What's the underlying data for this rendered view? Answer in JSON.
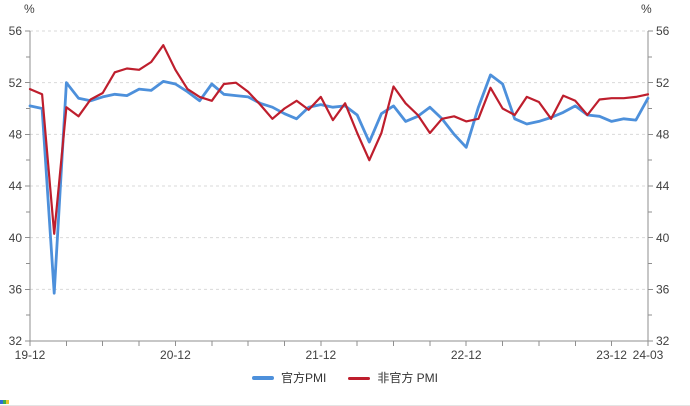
{
  "chart_data": {
    "type": "line",
    "title": "",
    "xlabel": "",
    "ylabel": "%",
    "ylim": [
      32,
      56
    ],
    "y_major_step": 4,
    "y_minor_step": 2,
    "dual_y_axis": true,
    "grid": "horizontal-dashed",
    "legend_position": "bottom-center",
    "x_minor_tick_every_months": 3,
    "x": [
      "19-12",
      "20-01",
      "20-02",
      "20-03",
      "20-04",
      "20-05",
      "20-06",
      "20-07",
      "20-08",
      "20-09",
      "20-10",
      "20-11",
      "20-12",
      "21-01",
      "21-02",
      "21-03",
      "21-04",
      "21-05",
      "21-06",
      "21-07",
      "21-08",
      "21-09",
      "21-10",
      "21-11",
      "21-12",
      "22-01",
      "22-02",
      "22-03",
      "22-04",
      "22-05",
      "22-06",
      "22-07",
      "22-08",
      "22-09",
      "22-10",
      "22-11",
      "22-12",
      "23-01",
      "23-02",
      "23-03",
      "23-04",
      "23-05",
      "23-06",
      "23-07",
      "23-08",
      "23-09",
      "23-10",
      "23-11",
      "23-12",
      "24-01",
      "24-02",
      "24-03"
    ],
    "x_tick_labels": [
      {
        "label": "19-12",
        "index": 0
      },
      {
        "label": "20-12",
        "index": 12
      },
      {
        "label": "21-12",
        "index": 24
      },
      {
        "label": "22-12",
        "index": 36
      },
      {
        "label": "23-12",
        "index": 48
      },
      {
        "label": "24-03",
        "index": 51
      }
    ],
    "series": [
      {
        "id": "official-pmi",
        "name": "官方PMI",
        "color": "#4d90db",
        "line_width": 2.8,
        "values": [
          50.2,
          50.0,
          35.7,
          52.0,
          50.8,
          50.6,
          50.9,
          51.1,
          51.0,
          51.5,
          51.4,
          52.1,
          51.9,
          51.3,
          50.6,
          51.9,
          51.1,
          51.0,
          50.9,
          50.4,
          50.1,
          49.6,
          49.2,
          50.1,
          50.3,
          50.1,
          50.2,
          49.5,
          47.4,
          49.6,
          50.2,
          49.0,
          49.4,
          50.1,
          49.2,
          48.0,
          47.0,
          50.1,
          52.6,
          51.9,
          49.2,
          48.8,
          49.0,
          49.3,
          49.7,
          50.2,
          49.5,
          49.4,
          49.0,
          49.2,
          49.1,
          50.8
        ]
      },
      {
        "id": "unofficial-pmi",
        "name": "非官方 PMI",
        "color": "#be1e2d",
        "line_width": 2.2,
        "values": [
          51.5,
          51.1,
          40.3,
          50.1,
          49.4,
          50.7,
          51.2,
          52.8,
          53.1,
          53.0,
          53.6,
          54.9,
          53.0,
          51.5,
          50.9,
          50.6,
          51.9,
          52.0,
          51.3,
          50.3,
          49.2,
          50.0,
          50.6,
          49.9,
          50.9,
          49.1,
          50.4,
          48.1,
          46.0,
          48.1,
          51.7,
          50.4,
          49.5,
          48.1,
          49.2,
          49.4,
          49.0,
          49.2,
          51.6,
          50.0,
          49.5,
          50.9,
          50.5,
          49.2,
          51.0,
          50.6,
          49.5,
          50.7,
          50.8,
          50.8,
          50.9,
          51.1
        ]
      }
    ]
  },
  "labels": {
    "left_axis_unit": "%",
    "right_axis_unit": "%"
  },
  "colors": {
    "grid": "#d9d9d9",
    "axis": "#8f8f8f",
    "text": "#404040",
    "legend_text": "#333333",
    "artifact": [
      "#2f6fd6",
      "#3fae4a",
      "#e5c72e"
    ]
  }
}
